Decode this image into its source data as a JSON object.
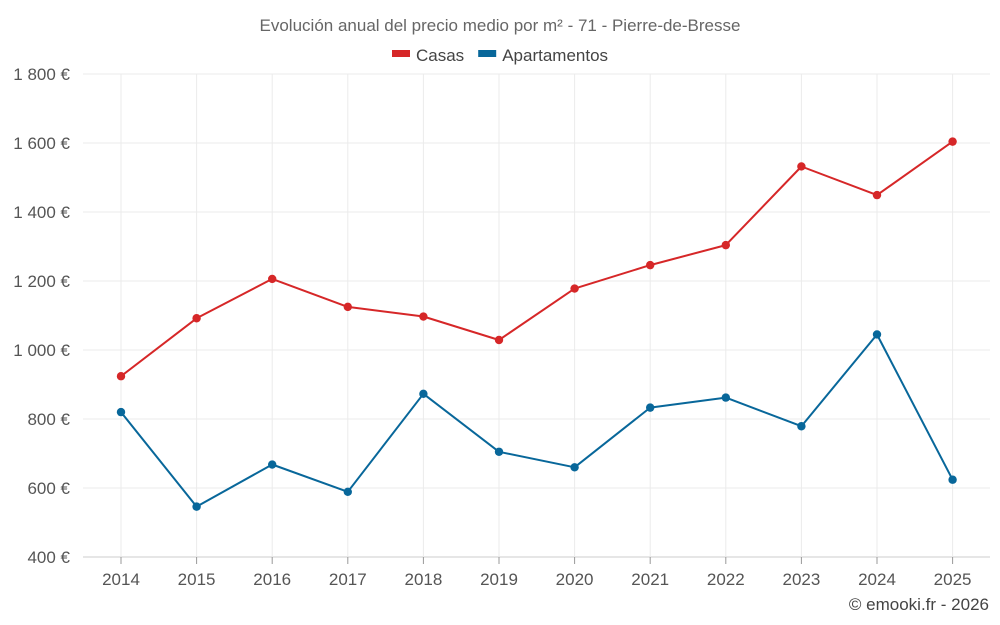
{
  "chart_data": {
    "type": "line",
    "title": "Evolución anual del precio medio por m² - 71 - Pierre-de-Bresse",
    "categories": [
      "2014",
      "2015",
      "2016",
      "2017",
      "2018",
      "2019",
      "2020",
      "2021",
      "2022",
      "2023",
      "2024",
      "2025"
    ],
    "series": [
      {
        "name": "Casas",
        "color": "#d62728",
        "values": [
          924,
          1092,
          1206,
          1125,
          1097,
          1029,
          1178,
          1246,
          1304,
          1532,
          1449,
          1604
        ]
      },
      {
        "name": "Apartamentos",
        "color": "#08679a",
        "values": [
          820,
          546,
          668,
          589,
          873,
          705,
          660,
          833,
          862,
          779,
          1045,
          624
        ]
      }
    ],
    "ylim": [
      400,
      1800
    ],
    "yticks": [
      400,
      600,
      800,
      1000,
      1200,
      1400,
      1600,
      1800
    ],
    "ytick_labels": [
      "400 €",
      "600 €",
      "800 €",
      "1 000 €",
      "1 200 €",
      "1 400 €",
      "1 600 €",
      "1 800 €"
    ],
    "grid": true,
    "legend_position": "top-center",
    "xlabel": "",
    "ylabel": ""
  },
  "credit": "© emooki.fr - 2026"
}
